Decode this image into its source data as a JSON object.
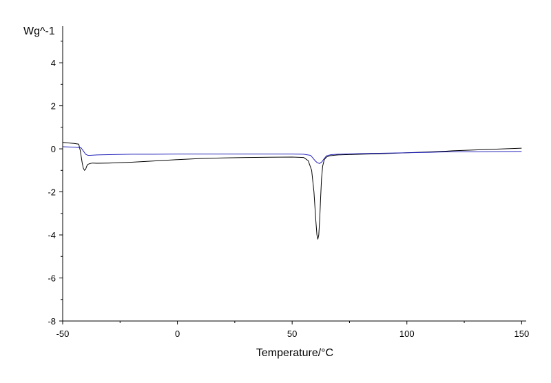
{
  "chart_data": {
    "type": "line",
    "title": "",
    "xlabel": "Temperature/°C",
    "ylabel": "Wg^-1",
    "xlim": [
      -50,
      152
    ],
    "ylim": [
      -8,
      5.7
    ],
    "x_ticks": [
      -50,
      0,
      50,
      100,
      150
    ],
    "x_tick_labels": [
      "-50",
      "0",
      "50",
      "100",
      "150"
    ],
    "y_ticks": [
      -8,
      -6,
      -4,
      -2,
      0,
      2,
      4
    ],
    "y_tick_labels": [
      "-8",
      "-6",
      "-4",
      "-2",
      "0",
      "2",
      "4"
    ],
    "grid": false,
    "legend": "none",
    "series": [
      {
        "color": "#000000",
        "x": [
          -50,
          -45,
          -43,
          -42.3,
          -41.5,
          -41,
          -40.5,
          -40,
          -39.5,
          -39,
          -38,
          -37,
          -35,
          -30,
          -20,
          -10,
          0,
          10,
          20,
          30,
          40,
          50,
          55,
          57,
          58.5,
          59.5,
          60.3,
          60.8,
          61.2,
          61.6,
          62,
          62.4,
          62.8,
          63.3,
          64,
          65,
          66.5,
          68,
          70,
          80,
          90,
          100,
          110,
          117,
          120,
          130,
          140,
          150
        ],
        "y": [
          0.3,
          0.25,
          0.22,
          -0.1,
          -0.65,
          -0.9,
          -1.0,
          -0.95,
          -0.8,
          -0.72,
          -0.68,
          -0.66,
          -0.67,
          -0.66,
          -0.62,
          -0.56,
          -0.5,
          -0.45,
          -0.42,
          -0.4,
          -0.39,
          -0.38,
          -0.4,
          -0.55,
          -1.0,
          -2.0,
          -3.3,
          -4.0,
          -4.2,
          -4.0,
          -3.3,
          -2.3,
          -1.4,
          -0.8,
          -0.5,
          -0.38,
          -0.32,
          -0.3,
          -0.28,
          -0.25,
          -0.22,
          -0.18,
          -0.14,
          -0.11,
          -0.09,
          -0.05,
          -0.01,
          0.03
        ]
      },
      {
        "color": "#2222bb",
        "x": [
          -50,
          -45,
          -42,
          -41,
          -40,
          -39,
          -38,
          -35,
          -30,
          -20,
          -10,
          0,
          10,
          20,
          30,
          40,
          50,
          55,
          58,
          59,
          60,
          61,
          62,
          63,
          64,
          65,
          67,
          70,
          80,
          90,
          100,
          110,
          117,
          120,
          130,
          140,
          150
        ],
        "y": [
          0.1,
          0.08,
          0.05,
          -0.1,
          -0.25,
          -0.3,
          -0.3,
          -0.28,
          -0.27,
          -0.25,
          -0.25,
          -0.24,
          -0.24,
          -0.24,
          -0.24,
          -0.24,
          -0.24,
          -0.25,
          -0.3,
          -0.42,
          -0.55,
          -0.65,
          -0.68,
          -0.6,
          -0.45,
          -0.32,
          -0.27,
          -0.25,
          -0.22,
          -0.2,
          -0.18,
          -0.16,
          -0.14,
          -0.14,
          -0.14,
          -0.13,
          -0.12
        ]
      }
    ]
  }
}
